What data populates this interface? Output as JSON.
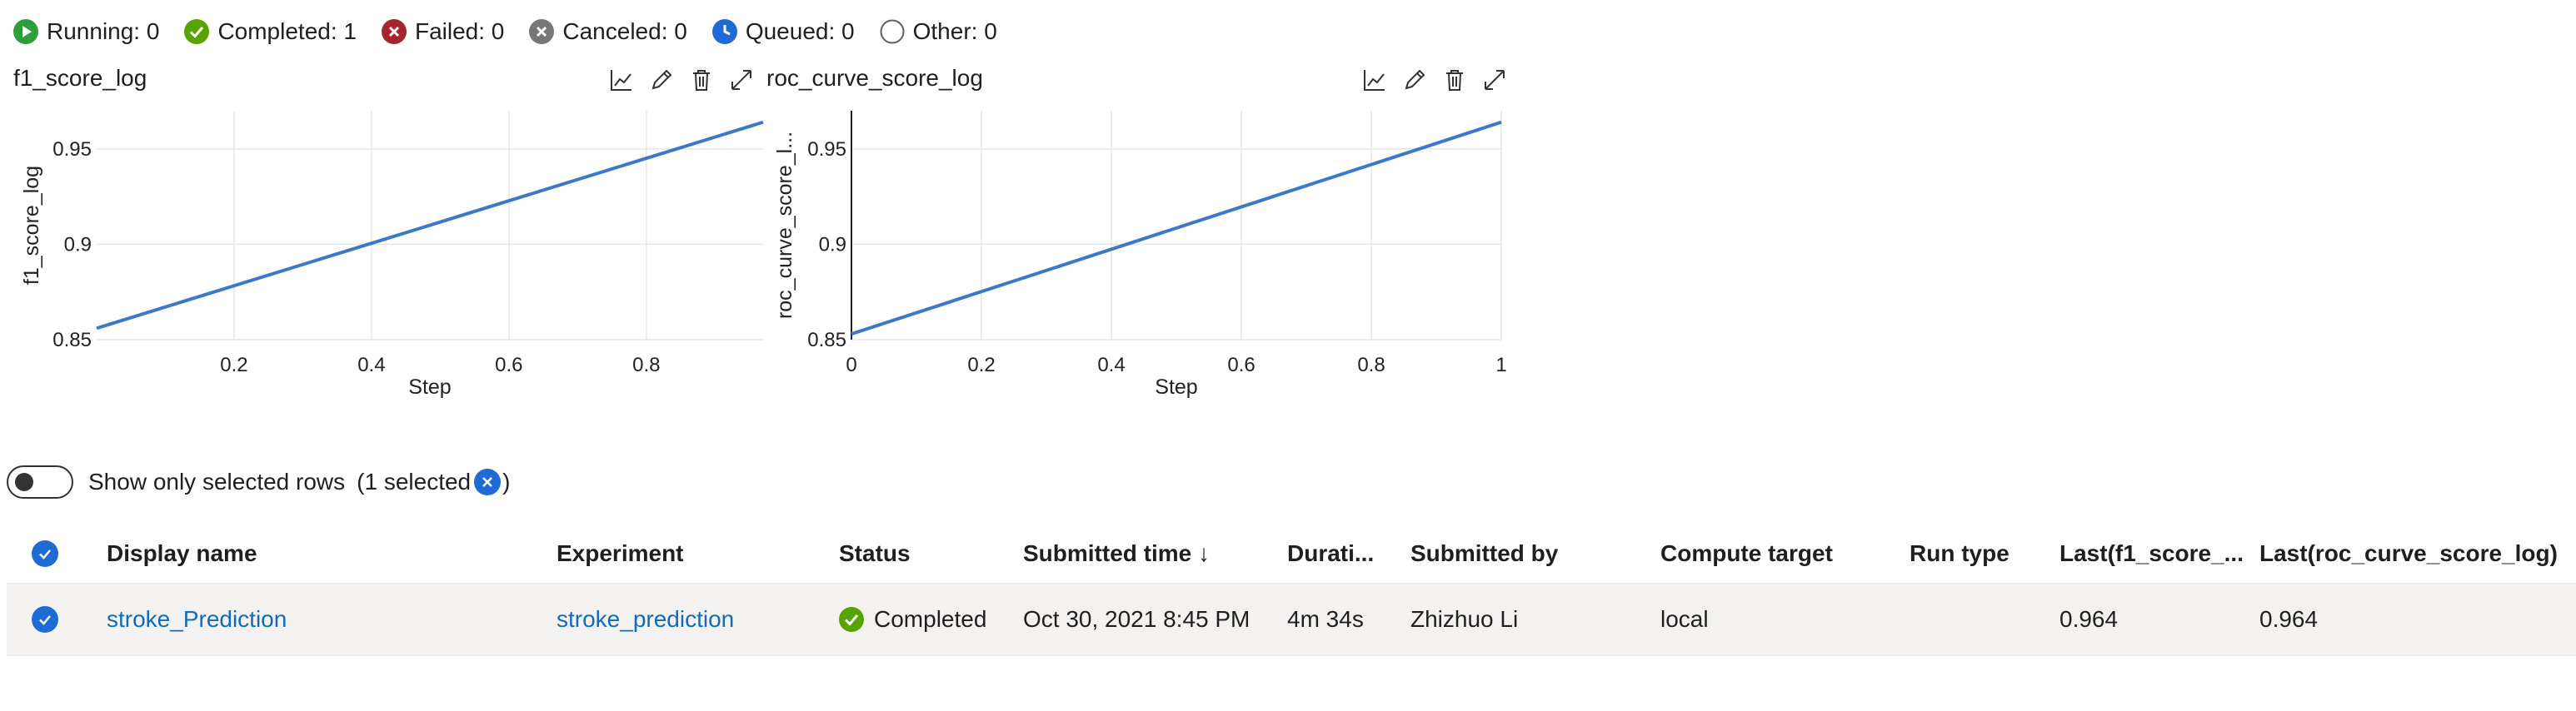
{
  "status_bar": [
    {
      "label": "Running: 0",
      "icon": "play-circle-icon",
      "color": "#2e9d3e"
    },
    {
      "label": "Completed: 1",
      "icon": "check-circle-icon",
      "color": "#57a300"
    },
    {
      "label": "Failed: 0",
      "icon": "error-circle-icon",
      "color": "#a4262c"
    },
    {
      "label": "Canceled: 0",
      "icon": "cancel-circle-icon",
      "color": "#797775"
    },
    {
      "label": "Queued: 0",
      "icon": "clock-circle-icon",
      "color": "#1f6bd6"
    },
    {
      "label": "Other: 0",
      "icon": "empty-circle-icon",
      "color": "#605e5c"
    }
  ],
  "chart_data": [
    {
      "type": "line",
      "title": "f1_score_log",
      "xlabel": "Step",
      "ylabel": "f1_score_log",
      "xlim": [
        0,
        0.97
      ],
      "ylim": [
        0.85,
        0.97
      ],
      "xticks": [
        "0.2",
        "0.4",
        "0.6",
        "0.8"
      ],
      "yticks": [
        "0.85",
        "0.9",
        "0.95"
      ],
      "series": [
        {
          "x": [
            0,
            0.97
          ],
          "y": [
            0.856,
            0.964
          ],
          "color": "#3b78c9"
        }
      ],
      "grid": true
    },
    {
      "type": "line",
      "title": "roc_curve_score_log",
      "xlabel": "Step",
      "ylabel": "roc_curve_score_l...",
      "xlim": [
        0,
        1
      ],
      "ylim": [
        0.85,
        0.97
      ],
      "xticks": [
        "0",
        "0.2",
        "0.4",
        "0.6",
        "0.8",
        "1"
      ],
      "yticks": [
        "0.85",
        "0.9",
        "0.95"
      ],
      "series": [
        {
          "x": [
            0,
            1
          ],
          "y": [
            0.853,
            0.964
          ],
          "color": "#3b78c9"
        }
      ],
      "grid": true
    }
  ],
  "toggle": {
    "label": "Show only selected rows",
    "selected_prefix": "(1 selected",
    "selected_suffix": ")"
  },
  "table": {
    "columns": [
      "Display name",
      "Experiment",
      "Status",
      "Submitted time ↓",
      "Durati...",
      "Submitted by",
      "Compute target",
      "Run type",
      "Last(f1_score_...",
      "Last(roc_curve_score_log)"
    ],
    "rows": [
      {
        "display_name": "stroke_Prediction",
        "experiment": "stroke_prediction",
        "status": "Completed",
        "submitted_time": "Oct 30, 2021 8:45 PM",
        "duration": "4m 34s",
        "submitted_by": "Zhizhuo Li",
        "compute_target": "local",
        "run_type": "",
        "last_f1": "0.964",
        "last_roc": "0.964"
      }
    ]
  },
  "colors": {
    "accent": "#1f6bd6",
    "link": "#0f6cbd",
    "success": "#57a300",
    "line": "#3b78c9"
  }
}
